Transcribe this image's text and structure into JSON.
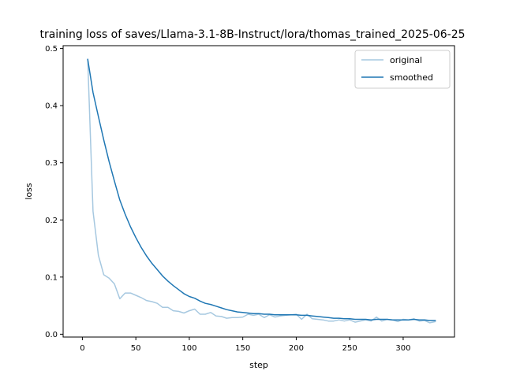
{
  "chart_data": {
    "type": "line",
    "title": "training loss of saves/Llama-3.1-8B-Instruct/lora/thomas_trained_2025-06-25",
    "xlabel": "step",
    "ylabel": "loss",
    "xlim": [
      -18,
      348
    ],
    "ylim": [
      -0.005,
      0.505
    ],
    "xticks": [
      0,
      50,
      100,
      150,
      200,
      250,
      300
    ],
    "yticks": [
      0.0,
      0.1,
      0.2,
      0.3,
      0.4,
      0.5
    ],
    "xtick_labels": [
      "0",
      "50",
      "100",
      "150",
      "200",
      "250",
      "300"
    ],
    "ytick_labels": [
      "0.0",
      "0.1",
      "0.2",
      "0.3",
      "0.4",
      "0.5"
    ],
    "grid": false,
    "legend_position": "top-right",
    "series": [
      {
        "name": "original",
        "color": "#a6c8e0",
        "x": [
          5,
          10,
          15,
          20,
          25,
          30,
          35,
          40,
          45,
          50,
          55,
          60,
          65,
          70,
          75,
          80,
          85,
          90,
          95,
          100,
          105,
          110,
          115,
          120,
          125,
          130,
          135,
          140,
          145,
          150,
          155,
          160,
          165,
          170,
          175,
          180,
          185,
          190,
          195,
          200,
          205,
          210,
          215,
          220,
          225,
          230,
          235,
          240,
          245,
          250,
          255,
          260,
          265,
          270,
          275,
          280,
          285,
          290,
          295,
          300,
          305,
          310,
          315,
          320,
          325,
          330
        ],
        "y": [
          0.48,
          0.215,
          0.138,
          0.104,
          0.098,
          0.088,
          0.062,
          0.072,
          0.072,
          0.068,
          0.064,
          0.059,
          0.057,
          0.054,
          0.047,
          0.047,
          0.041,
          0.04,
          0.037,
          0.041,
          0.044,
          0.035,
          0.035,
          0.038,
          0.032,
          0.031,
          0.028,
          0.029,
          0.029,
          0.03,
          0.035,
          0.033,
          0.035,
          0.029,
          0.034,
          0.03,
          0.032,
          0.033,
          0.034,
          0.035,
          0.026,
          0.035,
          0.027,
          0.026,
          0.025,
          0.023,
          0.023,
          0.025,
          0.023,
          0.025,
          0.021,
          0.023,
          0.025,
          0.023,
          0.03,
          0.023,
          0.026,
          0.025,
          0.022,
          0.026,
          0.025,
          0.027,
          0.023,
          0.024,
          0.02,
          0.022
        ]
      },
      {
        "name": "smoothed",
        "color": "#1f77b4",
        "x": [
          5,
          10,
          15,
          20,
          25,
          30,
          35,
          40,
          45,
          50,
          55,
          60,
          65,
          70,
          75,
          80,
          85,
          90,
          95,
          100,
          105,
          110,
          115,
          120,
          125,
          130,
          135,
          140,
          145,
          150,
          155,
          160,
          165,
          170,
          175,
          180,
          185,
          190,
          195,
          200,
          205,
          210,
          215,
          220,
          225,
          230,
          235,
          240,
          245,
          250,
          255,
          260,
          265,
          270,
          275,
          280,
          285,
          290,
          295,
          300,
          305,
          310,
          315,
          320,
          325,
          330
        ],
        "y": [
          0.481,
          0.423,
          0.381,
          0.34,
          0.302,
          0.268,
          0.235,
          0.21,
          0.188,
          0.169,
          0.152,
          0.137,
          0.124,
          0.113,
          0.102,
          0.093,
          0.085,
          0.078,
          0.071,
          0.066,
          0.063,
          0.058,
          0.054,
          0.052,
          0.049,
          0.046,
          0.043,
          0.041,
          0.039,
          0.038,
          0.037,
          0.036,
          0.036,
          0.035,
          0.035,
          0.034,
          0.034,
          0.034,
          0.034,
          0.034,
          0.033,
          0.033,
          0.032,
          0.031,
          0.03,
          0.029,
          0.028,
          0.028,
          0.027,
          0.027,
          0.026,
          0.026,
          0.026,
          0.025,
          0.026,
          0.026,
          0.026,
          0.025,
          0.025,
          0.025,
          0.025,
          0.026,
          0.025,
          0.025,
          0.024,
          0.024
        ]
      }
    ]
  }
}
